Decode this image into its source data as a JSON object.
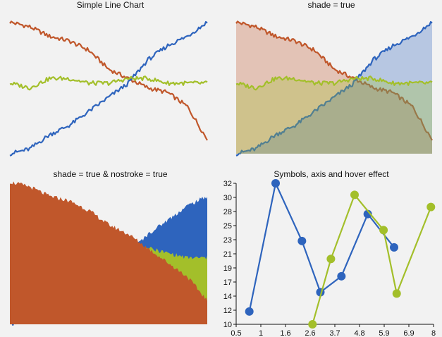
{
  "colors": {
    "orange": "#c0572b",
    "blue": "#2e64bd",
    "green": "#a3bf2a",
    "background": "#f2f2f2",
    "axis": "#111111"
  },
  "chart_data": [
    {
      "type": "line",
      "title": "Simple Line Chart",
      "x": [
        0,
        0.1,
        0.2,
        0.3,
        0.4,
        0.5,
        0.6,
        0.7,
        0.8,
        0.9,
        1.0
      ],
      "series": [
        {
          "color": "#c0572b",
          "values": [
            2.8,
            2.7,
            2.5,
            2.4,
            2.2,
            1.8,
            1.6,
            1.4,
            1.3,
            1.0,
            0.3
          ]
        },
        {
          "color": "#2e64bd",
          "values": [
            0.0,
            0.1,
            0.4,
            0.6,
            0.9,
            1.2,
            1.5,
            2.0,
            2.3,
            2.5,
            2.8
          ]
        },
        {
          "color": "#a3bf2a",
          "values": [
            1.5,
            1.4,
            1.6,
            1.6,
            1.5,
            1.5,
            1.6,
            1.6,
            1.5,
            1.5,
            1.5
          ]
        }
      ],
      "shade": false,
      "nostroke": false
    },
    {
      "type": "area",
      "title": "shade = true",
      "x": [
        0,
        0.1,
        0.2,
        0.3,
        0.4,
        0.5,
        0.6,
        0.7,
        0.8,
        0.9,
        1.0
      ],
      "series": [
        {
          "color": "#c0572b",
          "values": [
            2.8,
            2.7,
            2.5,
            2.4,
            2.2,
            1.8,
            1.6,
            1.4,
            1.3,
            1.0,
            0.3
          ]
        },
        {
          "color": "#2e64bd",
          "values": [
            0.0,
            0.1,
            0.4,
            0.6,
            0.9,
            1.2,
            1.5,
            2.0,
            2.3,
            2.5,
            2.8
          ]
        },
        {
          "color": "#a3bf2a",
          "values": [
            1.5,
            1.4,
            1.6,
            1.6,
            1.5,
            1.5,
            1.6,
            1.6,
            1.5,
            1.5,
            1.5
          ]
        }
      ],
      "shade": true,
      "nostroke": false
    },
    {
      "type": "area",
      "title": "shade = true & nostroke = true",
      "x": [
        0,
        0.1,
        0.2,
        0.3,
        0.4,
        0.5,
        0.6,
        0.7,
        0.8,
        0.9,
        1.0
      ],
      "series": [
        {
          "color": "#c0572b",
          "values": [
            3.0,
            2.9,
            2.7,
            2.6,
            2.4,
            2.1,
            1.9,
            1.6,
            1.3,
            1.0,
            0.5
          ]
        },
        {
          "color": "#2e64bd",
          "values": [
            0.0,
            0.1,
            0.4,
            0.6,
            0.9,
            1.1,
            1.5,
            1.9,
            2.2,
            2.5,
            2.7
          ]
        },
        {
          "color": "#a3bf2a",
          "values": [
            1.5,
            1.4,
            1.6,
            1.6,
            1.5,
            1.5,
            1.6,
            1.6,
            1.5,
            1.4,
            1.4
          ]
        }
      ],
      "shade": true,
      "nostroke": true
    },
    {
      "type": "line",
      "title": "Symbols, axis and hover effect",
      "symbols": true,
      "xlim": [
        0.5,
        8
      ],
      "ylim": [
        10,
        32
      ],
      "x_ticks": [
        "0.5",
        "1",
        "1.6",
        "2.6",
        "3.7",
        "4.8",
        "5.9",
        "6.9",
        "8"
      ],
      "y_ticks": [
        "10",
        "12",
        "14",
        "17",
        "19",
        "21",
        "23",
        "25",
        "28",
        "30",
        "32"
      ],
      "series": [
        {
          "color": "#2e64bd",
          "points": [
            [
              1,
              12
            ],
            [
              2,
              32
            ],
            [
              3,
              23
            ],
            [
              3.7,
              15
            ],
            [
              4.5,
              17.5
            ],
            [
              5.5,
              27.2
            ],
            [
              6.5,
              22
            ]
          ]
        },
        {
          "color": "#a3bf2a",
          "points": [
            [
              3.4,
              10
            ],
            [
              4.1,
              20.2
            ],
            [
              5.0,
              30.2
            ],
            [
              6.1,
              24.7
            ],
            [
              6.6,
              14.8
            ],
            [
              7.9,
              28.3
            ]
          ]
        }
      ]
    }
  ]
}
